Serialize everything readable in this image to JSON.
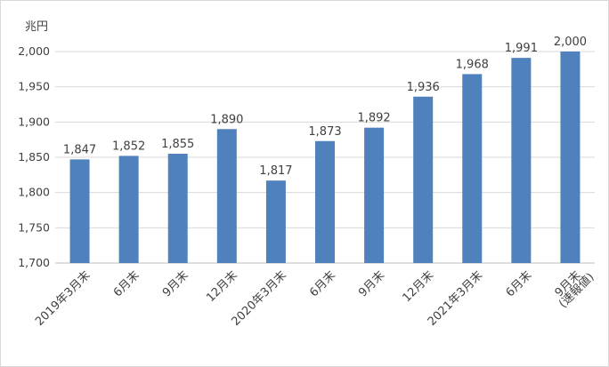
{
  "chart_data": {
    "type": "bar",
    "unit": "兆円",
    "categories": [
      [
        "2019年3月末"
      ],
      [
        "6月末"
      ],
      [
        "9月末"
      ],
      [
        "12月末"
      ],
      [
        "2020年3月末"
      ],
      [
        "6月末"
      ],
      [
        "9月末"
      ],
      [
        "12月末"
      ],
      [
        "2021年3月末"
      ],
      [
        "6月末"
      ],
      [
        "9月末",
        "(速報値)"
      ]
    ],
    "values": [
      1847,
      1852,
      1855,
      1890,
      1817,
      1873,
      1892,
      1936,
      1968,
      1991,
      2000
    ],
    "data_labels": [
      "1,847",
      "1,852",
      "1,855",
      "1,890",
      "1,817",
      "1,873",
      "1,892",
      "1,936",
      "1,968",
      "1,991",
      "2,000"
    ],
    "yticks": [
      {
        "value": 1700,
        "label": "1,700"
      },
      {
        "value": 1750,
        "label": "1,750"
      },
      {
        "value": 1800,
        "label": "1,800"
      },
      {
        "value": 1850,
        "label": "1,850"
      },
      {
        "value": 1900,
        "label": "1,900"
      },
      {
        "value": 1950,
        "label": "1,950"
      },
      {
        "value": 2000,
        "label": "2,000"
      }
    ],
    "ylim": [
      1700,
      2000
    ],
    "grid": true,
    "legend": "none",
    "colors": {
      "bar": "#4f81bd",
      "grid": "#d9d9d9",
      "axis": "#bfbfbf",
      "text": "#404040"
    }
  }
}
